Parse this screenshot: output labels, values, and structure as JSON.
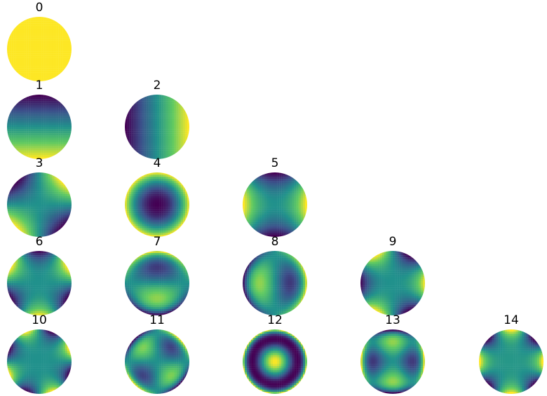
{
  "colormap": "viridis",
  "colors": {
    "viridis_stops": [
      "#440154",
      "#3b528b",
      "#21918c",
      "#5ec962",
      "#fde725"
    ]
  },
  "modes": [
    {
      "label": "0",
      "row": 0,
      "col": 0,
      "type": "piston"
    },
    {
      "label": "1",
      "row": 1,
      "col": 0,
      "type": "tilt-vertical"
    },
    {
      "label": "2",
      "row": 1,
      "col": 1,
      "type": "tilt-horizontal"
    },
    {
      "label": "3",
      "row": 2,
      "col": 0,
      "type": "oblique-astigmatism"
    },
    {
      "label": "4",
      "row": 2,
      "col": 1,
      "type": "defocus"
    },
    {
      "label": "5",
      "row": 2,
      "col": 2,
      "type": "vertical-astigmatism"
    },
    {
      "label": "6",
      "row": 3,
      "col": 0,
      "type": "trefoil-a"
    },
    {
      "label": "7",
      "row": 3,
      "col": 1,
      "type": "coma-vertical"
    },
    {
      "label": "8",
      "row": 3,
      "col": 2,
      "type": "coma-horizontal"
    },
    {
      "label": "9",
      "row": 3,
      "col": 3,
      "type": "trefoil-b"
    },
    {
      "label": "10",
      "row": 4,
      "col": 0,
      "type": "tetrafoil-a"
    },
    {
      "label": "11",
      "row": 4,
      "col": 1,
      "type": "secondary-astigmatism-a"
    },
    {
      "label": "12",
      "row": 4,
      "col": 2,
      "type": "spherical"
    },
    {
      "label": "13",
      "row": 4,
      "col": 3,
      "type": "secondary-astigmatism-b"
    },
    {
      "label": "14",
      "row": 4,
      "col": 4,
      "type": "tetrafoil-b"
    }
  ]
}
